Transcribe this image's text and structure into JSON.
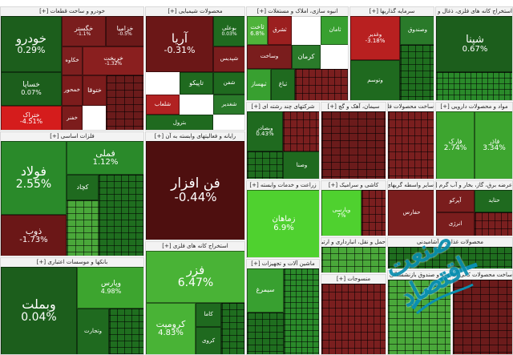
{
  "sectors": [
    {
      "id": "auto",
      "title": "خودرو و ساخت قطعات [+]"
    },
    {
      "id": "agri",
      "title": "محصولات شیمیایی [+]"
    },
    {
      "id": "mass",
      "title": "انبوه سازی، املاک و مستغلات [+]"
    },
    {
      "id": "inv",
      "title": "سرمایه گذاریها [+]"
    },
    {
      "id": "ore",
      "title": "استخراج کانه های فلزی، ذغال و ..."
    },
    {
      "id": "metal",
      "title": "فلزات اساسی [+]"
    },
    {
      "id": "it",
      "title": "رایانه و فعالیتهای وابسته به آن [+]"
    },
    {
      "id": "multi",
      "title": "شرکتهای چند رشته ای [+]"
    },
    {
      "id": "oil",
      "title": "سیمان، آهک و گچ [+]"
    },
    {
      "id": "pharma",
      "title": "ساخت محصولات فلزی [+]"
    },
    {
      "id": "drug",
      "title": "مواد و محصولات دارویی [+]"
    },
    {
      "id": "bank",
      "title": "بانکها و موسسات اعتباری [+]"
    },
    {
      "id": "mine",
      "title": "استخراج کانه های فلزی [+]"
    },
    {
      "id": "ceramic",
      "title": "کاشی و سرامیک [+]"
    },
    {
      "id": "farm",
      "title": "زراعت و خدمات وابسته [+]"
    },
    {
      "id": "tele",
      "title": "سایر واسطه گریهای مالی [+]"
    },
    {
      "id": "water",
      "title": "عرضه برق، گاز، بخار و آب گرم [+]"
    },
    {
      "id": "trans",
      "title": "حمل و نقل، انبارداری و ارتباطات"
    },
    {
      "id": "food",
      "title": "محصولات غذایی و آشامیدنی"
    },
    {
      "id": "chem",
      "title": "ماشین آلات و تجهیزات [+]"
    },
    {
      "id": "textile",
      "title": "منسوجات [+]"
    },
    {
      "id": "insure",
      "title": "بیمه و صندوق بازنشستگی [+]"
    },
    {
      "id": "elec",
      "title": "ساخت محصولات کانی غیرفلزی"
    }
  ],
  "tiles": [
    {
      "n": "خودرو",
      "p": "0.29%",
      "c": "#1c5e1c"
    },
    {
      "n": "خساپا",
      "p": "0.07%",
      "c": "#1c5e1c"
    },
    {
      "n": "خگستر",
      "p": "-1.1%",
      "c": "#7a1d1d"
    },
    {
      "n": "خزامیا",
      "p": "-0.5%",
      "c": "#6b1919"
    },
    {
      "n": "خکاوه",
      "p": "",
      "c": "#7e1f1f"
    },
    {
      "n": "خریخت",
      "p": "-1.32%",
      "c": "#8a1f1f"
    },
    {
      "n": "ختوقا",
      "p": "",
      "c": "#7c1c1c"
    },
    {
      "n": "خمحور",
      "p": "",
      "c": "#7c1c1c"
    },
    {
      "n": "خفنر",
      "p": "",
      "c": "#7c1c1c"
    },
    {
      "n": "ختراک",
      "p": "-4.51%",
      "c": "#d51c1c"
    },
    {
      "n": "آریا",
      "p": "-0.31%",
      "c": "#6b1717"
    },
    {
      "n": "بوعلی",
      "p": "0.03%",
      "c": "#1f6a1f"
    },
    {
      "n": "تاپیکو",
      "p": "",
      "c": "#1f6a1f"
    },
    {
      "n": "شپدیس",
      "p": "",
      "c": "#7a1d1d"
    },
    {
      "n": "شفن",
      "p": "",
      "c": "#1f6a1f"
    },
    {
      "n": "شغدیر",
      "p": "",
      "c": "#2a7a2a"
    },
    {
      "n": "شلعاب",
      "p": "",
      "c": "#b12222"
    },
    {
      "n": "بترول",
      "p": "",
      "c": "#1f6a1f"
    },
    {
      "n": "ثاخت",
      "p": "6.8%",
      "c": "#4fb33a"
    },
    {
      "n": "ثشرق",
      "p": "",
      "c": "#9b1f1f"
    },
    {
      "n": "وساخت",
      "p": "",
      "c": "#7a1d1d"
    },
    {
      "n": "کرمان",
      "p": "",
      "c": "#2a7a2a"
    },
    {
      "n": "ثامان",
      "p": "",
      "c": "#38a030"
    },
    {
      "n": "ثبهساز",
      "p": "",
      "c": "#38a030"
    },
    {
      "n": "ثباغ",
      "p": "",
      "c": "#1f6a1f"
    },
    {
      "n": "وغدیر",
      "p": "-3.18%",
      "c": "#b82020"
    },
    {
      "n": "وصندوق",
      "p": "",
      "c": "#2a7a2a"
    },
    {
      "n": "وتوسم",
      "p": "",
      "c": "#1f6a1f"
    },
    {
      "n": "شپنا",
      "p": "0.67%",
      "c": "#1c5e1c"
    },
    {
      "n": "فولاد",
      "p": "2.55%",
      "c": "#2a8a2a"
    },
    {
      "n": "فملی",
      "p": "1.12%",
      "c": "#2a8a2a"
    },
    {
      "n": "کچاد",
      "p": "",
      "c": "#1f6a1f"
    },
    {
      "n": "ذوب",
      "p": "-1.73%",
      "c": "#6b1717"
    },
    {
      "n": "فن افزار",
      "p": "-0.44%",
      "c": "#4e0f0f"
    },
    {
      "n": "وبصادر",
      "p": "0.43%",
      "c": "#1f6a1f"
    },
    {
      "n": "وصنا",
      "p": "",
      "c": "#1f6a1f"
    },
    {
      "n": "فارک",
      "p": "2.74%",
      "c": "#3da52f"
    },
    {
      "n": "فاذر",
      "p": "3.34%",
      "c": "#3da52f"
    },
    {
      "n": "وبملت",
      "p": "0.04%",
      "c": "#1c5e1c"
    },
    {
      "n": "وپارس",
      "p": "4.98%",
      "c": "#3da52f"
    },
    {
      "n": "وتجارت",
      "p": "",
      "c": "#1f6a1f"
    },
    {
      "n": "فزر",
      "p": "6.47%",
      "c": "#49b336"
    },
    {
      "n": "کرومیت",
      "p": "4.83%",
      "c": "#49b336"
    },
    {
      "n": "کاما",
      "p": "",
      "c": "#1f6a1f"
    },
    {
      "n": "کروی",
      "p": "",
      "c": "#1f6a1f"
    },
    {
      "n": "زماهان",
      "p": "6.9%",
      "c": "#4fd12f"
    },
    {
      "n": "وپارسی",
      "p": "7%",
      "c": "#4fd12f"
    },
    {
      "n": "آپرکو",
      "p": "",
      "c": "#7a1d1d"
    },
    {
      "n": "حتاید",
      "p": "",
      "c": "#1f6a1f"
    },
    {
      "n": "حفارس",
      "p": "",
      "c": "#7a1d1d"
    },
    {
      "n": "انرژی",
      "p": "",
      "c": "#7a1d1d"
    },
    {
      "n": "سیمرغ",
      "p": "",
      "c": "#38a030"
    }
  ],
  "watermark": "صنعت اقتصاد"
}
